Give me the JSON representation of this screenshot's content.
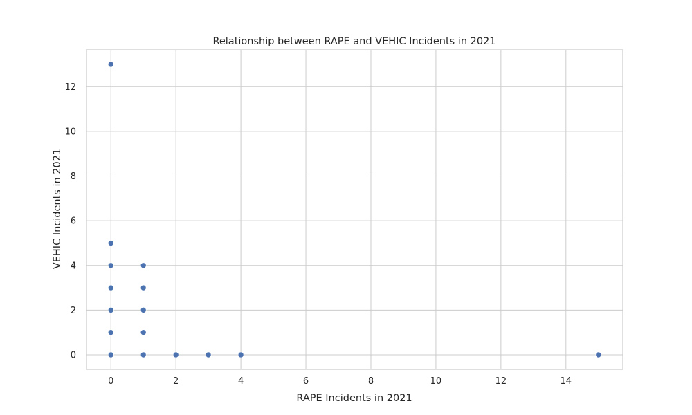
{
  "chart_data": {
    "type": "scatter",
    "title": "Relationship between RAPE and VEHIC Incidents in 2021",
    "xlabel": "RAPE Incidents in 2021",
    "ylabel": "VEHIC Incidents in 2021",
    "xlim": [
      -0.75,
      15.75
    ],
    "ylim": [
      -0.65,
      13.65
    ],
    "xticks": [
      0,
      2,
      4,
      6,
      8,
      10,
      12,
      14
    ],
    "yticks": [
      0,
      2,
      4,
      6,
      8,
      10,
      12
    ],
    "grid": true,
    "point_color": "#4c72b0",
    "points": [
      {
        "x": 0,
        "y": 13
      },
      {
        "x": 0,
        "y": 5
      },
      {
        "x": 0,
        "y": 4
      },
      {
        "x": 0,
        "y": 3
      },
      {
        "x": 0,
        "y": 2
      },
      {
        "x": 0,
        "y": 1
      },
      {
        "x": 0,
        "y": 0
      },
      {
        "x": 1,
        "y": 4
      },
      {
        "x": 1,
        "y": 3
      },
      {
        "x": 1,
        "y": 2
      },
      {
        "x": 1,
        "y": 1
      },
      {
        "x": 1,
        "y": 0
      },
      {
        "x": 2,
        "y": 0
      },
      {
        "x": 3,
        "y": 0
      },
      {
        "x": 4,
        "y": 0
      },
      {
        "x": 15,
        "y": 0
      }
    ]
  }
}
